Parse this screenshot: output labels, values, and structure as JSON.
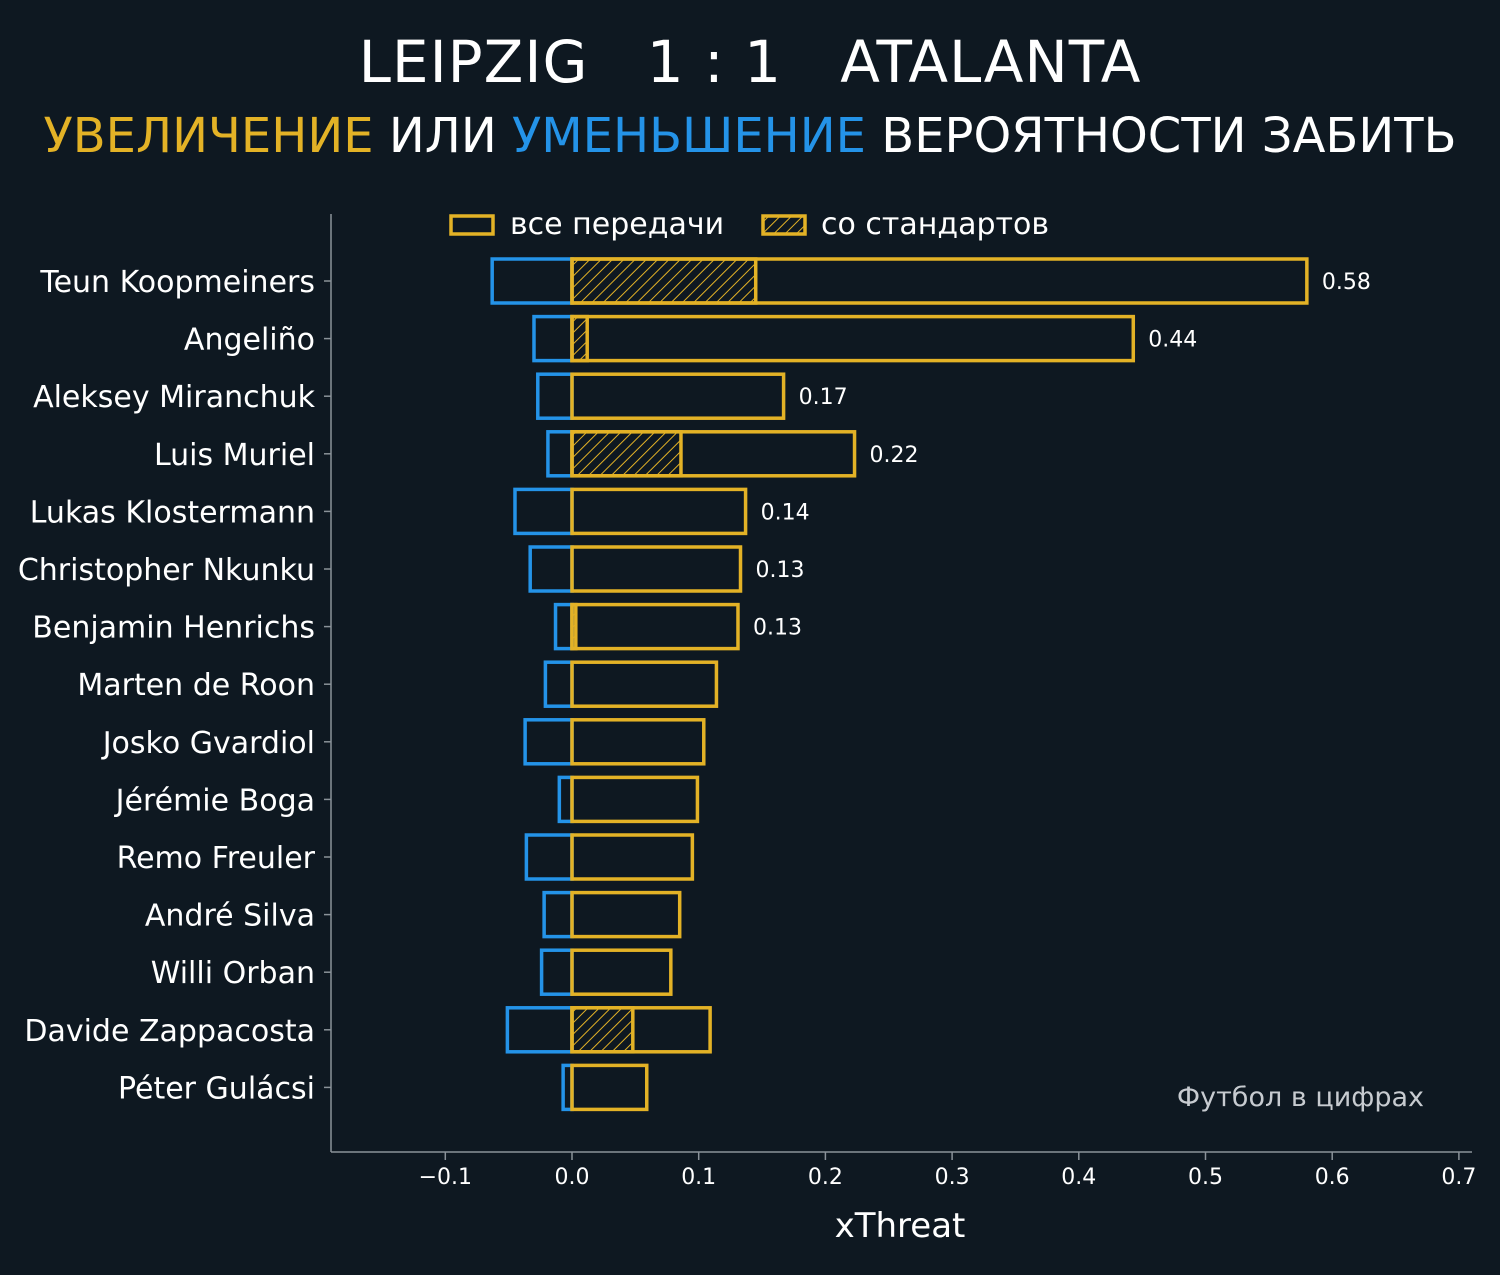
{
  "chart_data": {
    "type": "bar",
    "orientation": "horizontal",
    "title": {
      "home": "LEIPZIG",
      "score": "1 : 1",
      "away": "ATALANTA"
    },
    "subtitle": {
      "increase": "УВЕЛИЧЕНИЕ",
      "or": "ИЛИ",
      "decrease": "УМЕНЬШЕНИЕ",
      "rest": "ВЕРОЯТНОСТИ ЗАБИТЬ"
    },
    "xlabel": "xThreat",
    "xlim": [
      -0.19,
      0.7
    ],
    "xticks": [
      -0.1,
      0.0,
      0.1,
      0.2,
      0.3,
      0.4,
      0.5,
      0.6,
      0.7
    ],
    "xtick_labels": [
      "−0.1",
      "0.0",
      "0.1",
      "0.2",
      "0.3",
      "0.4",
      "0.5",
      "0.6",
      "0.7"
    ],
    "legend": {
      "all_passes": "все передачи",
      "set_pieces": "со стандартов",
      "placement": "top"
    },
    "watermark": "Футбол в цифрах",
    "colors": {
      "background": "#0e1821",
      "positive": "#e3b226",
      "negative": "#2493e8",
      "axis": "#8a9299"
    },
    "players": [
      {
        "name": "Teun Koopmeiners",
        "pos": 0.58,
        "neg": -0.063,
        "set_piece": 0.145,
        "label": "0.58"
      },
      {
        "name": "Angeliño",
        "pos": 0.443,
        "neg": -0.03,
        "set_piece": 0.012,
        "label": "0.44"
      },
      {
        "name": "Aleksey Miranchuk",
        "pos": 0.167,
        "neg": -0.027,
        "set_piece": 0,
        "label": "0.17"
      },
      {
        "name": "Luis Muriel",
        "pos": 0.223,
        "neg": -0.019,
        "set_piece": 0.086,
        "label": "0.22"
      },
      {
        "name": "Lukas Klostermann",
        "pos": 0.137,
        "neg": -0.045,
        "set_piece": 0,
        "label": "0.14"
      },
      {
        "name": "Christopher Nkunku",
        "pos": 0.133,
        "neg": -0.033,
        "set_piece": 0,
        "label": "0.13"
      },
      {
        "name": "Benjamin Henrichs",
        "pos": 0.131,
        "neg": -0.013,
        "set_piece": 0.003,
        "label": "0.13"
      },
      {
        "name": "Marten de Roon",
        "pos": 0.114,
        "neg": -0.021,
        "set_piece": 0,
        "label": ""
      },
      {
        "name": "Josko Gvardiol",
        "pos": 0.104,
        "neg": -0.037,
        "set_piece": 0,
        "label": ""
      },
      {
        "name": "Jérémie Boga",
        "pos": 0.099,
        "neg": -0.01,
        "set_piece": 0,
        "label": ""
      },
      {
        "name": "Remo Freuler",
        "pos": 0.095,
        "neg": -0.036,
        "set_piece": 0,
        "label": ""
      },
      {
        "name": "André Silva",
        "pos": 0.085,
        "neg": -0.022,
        "set_piece": 0,
        "label": ""
      },
      {
        "name": "Willi Orban",
        "pos": 0.078,
        "neg": -0.024,
        "set_piece": 0,
        "label": ""
      },
      {
        "name": "Davide Zappacosta",
        "pos": 0.109,
        "neg": -0.051,
        "set_piece": 0.048,
        "label": ""
      },
      {
        "name": "Péter Gulácsi",
        "pos": 0.059,
        "neg": -0.007,
        "set_piece": 0,
        "label": ""
      }
    ]
  }
}
